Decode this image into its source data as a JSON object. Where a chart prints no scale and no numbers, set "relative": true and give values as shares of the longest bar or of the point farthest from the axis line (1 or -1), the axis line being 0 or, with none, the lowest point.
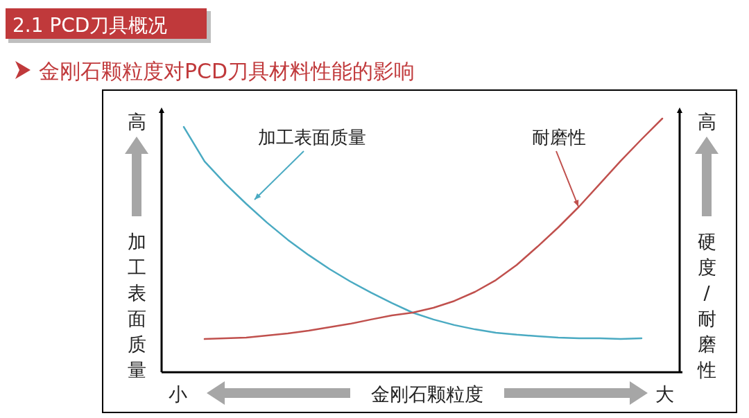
{
  "chart_data": {
    "type": "line",
    "title": "2.1 PCD刀具概况",
    "subtitle": "金刚石颗粒度对PCD刀具材料性能的影响",
    "xlabel": "金刚石颗粒度",
    "ylabel": "加工表面质量",
    "y2label": "硬度/耐磨性",
    "annotations": [
      "高",
      "高",
      "小",
      "大"
    ],
    "relative": true,
    "categories": [
      null,
      null,
      null,
      null,
      null,
      null,
      null,
      null,
      null,
      null,
      null,
      null,
      null,
      null,
      null,
      null,
      null,
      null,
      null,
      null,
      null,
      null,
      null,
      null
    ],
    "series": [
      {
        "name": "加工表面质量",
        "color": "#4aaac2",
        "values": [
          0.967,
          0.831,
          0.743,
          0.664,
          0.59,
          0.522,
          0.462,
          0.407,
          0.358,
          0.314,
          0.273,
          0.235,
          0.208,
          0.186,
          0.169,
          0.156,
          0.148,
          0.142,
          0.137,
          0.134,
          0.134,
          0.131,
          0.134,
          null
        ]
      },
      {
        "name": "耐磨性",
        "color": "#c0504d",
        "values": [
          null,
          0.131,
          0.134,
          0.137,
          0.145,
          0.153,
          0.164,
          0.178,
          0.191,
          0.208,
          0.224,
          0.235,
          0.254,
          0.281,
          0.317,
          0.363,
          0.423,
          0.495,
          0.571,
          0.653,
          0.743,
          0.833,
          0.918,
          1
        ]
      }
    ],
    "marker": "none",
    "line_style": "solid"
  }
}
